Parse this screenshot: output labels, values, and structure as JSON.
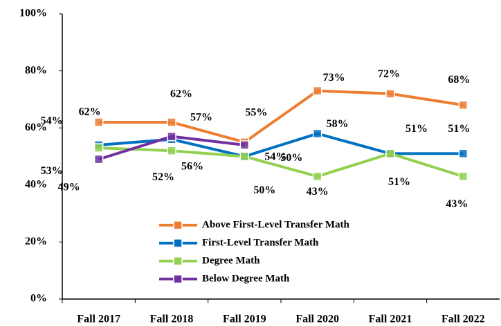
{
  "chart_data": {
    "type": "line",
    "categories": [
      "Fall 2017",
      "Fall 2018",
      "Fall 2019",
      "Fall 2020",
      "Fall 2021",
      "Fall 2022"
    ],
    "series": [
      {
        "name": "Above First-Level Transfer Math",
        "color": "#ED7D31",
        "values": [
          62,
          62,
          55,
          73,
          72,
          68
        ],
        "value_labels": [
          "62%",
          "62%",
          "55%",
          "73%",
          "72%",
          "68%"
        ]
      },
      {
        "name": "First-Level Transfer Math",
        "color": "#0070C0",
        "values": [
          54,
          56,
          50,
          58,
          51,
          51
        ],
        "value_labels": [
          "54%",
          "56%",
          "50%",
          "58%",
          "51%",
          "51%"
        ]
      },
      {
        "name": "Degree Math",
        "color": "#92D050",
        "values": [
          53,
          52,
          50,
          43,
          51,
          43
        ],
        "value_labels": [
          "53%",
          "52%",
          "50%",
          "43%",
          "51%",
          "43%"
        ]
      },
      {
        "name": "Below Degree Math",
        "color": "#7030A0",
        "values": [
          49,
          57,
          54,
          null,
          null,
          null
        ],
        "value_labels": [
          "49%",
          "57%",
          "54%",
          null,
          null,
          null
        ]
      }
    ],
    "ylim": [
      0,
      100
    ],
    "yticks": [
      {
        "value": 0,
        "label": "0%"
      },
      {
        "value": 20,
        "label": "20%"
      },
      {
        "value": 40,
        "label": "40%"
      },
      {
        "value": 60,
        "label": "60%"
      },
      {
        "value": 80,
        "label": "80%"
      },
      {
        "value": 100,
        "label": "100%"
      }
    ],
    "grid": false
  }
}
